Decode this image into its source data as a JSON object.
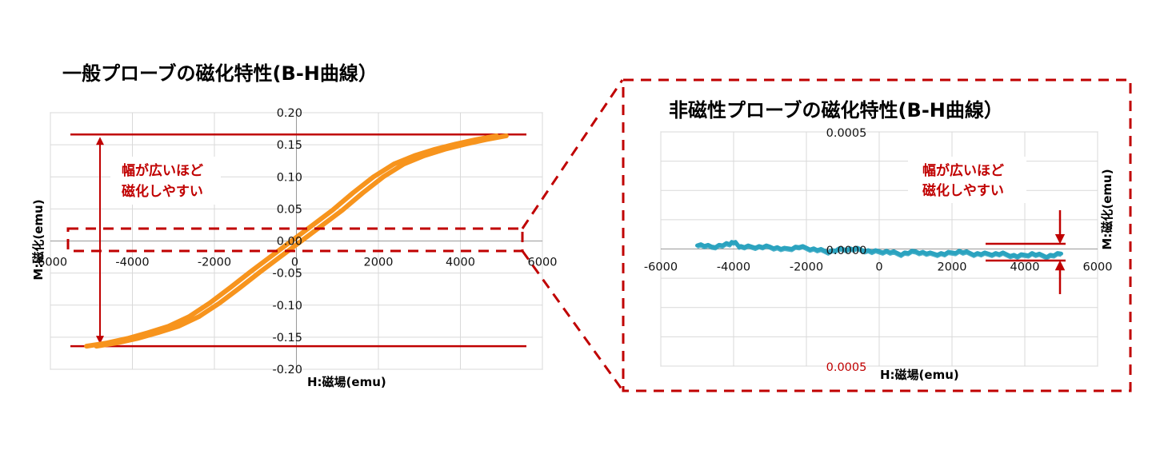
{
  "colors": {
    "accent_red": "#c00000",
    "general_series": "#f7941d",
    "nonmag_series": "#2ba3bf",
    "grid": "#d9d9d9"
  },
  "chart_data": [
    {
      "type": "line",
      "title": "一般プローブの磁化特性(B-H曲線）",
      "xlabel": "H:磁場(emu)",
      "ylabel": "M:磁化(emu)",
      "xlim": [
        -6000,
        6000
      ],
      "ylim": [
        -0.2,
        0.2
      ],
      "x_ticks": [
        -6000,
        -4000,
        -2000,
        0,
        2000,
        4000,
        6000
      ],
      "x_tick_labels": [
        "-6000",
        "-4000",
        "-2000",
        "0",
        "2000",
        "4000",
        "6000"
      ],
      "y_ticks": [
        0.2,
        0.15,
        0.1,
        0.05,
        0.0,
        -0.05,
        -0.1,
        -0.15,
        -0.2
      ],
      "y_tick_labels": [
        "0.20",
        "0.15",
        "0.10",
        "0.05",
        "0.00",
        "-0.05",
        "-0.10",
        "-0.15",
        "-0.20"
      ],
      "grid": true,
      "series": [
        {
          "x": [
            -5000,
            -4500,
            -4000,
            -3500,
            -3000,
            -2500,
            -2000,
            -1500,
            -1000,
            -500,
            0,
            500,
            1000,
            1500,
            2000,
            2500,
            3000,
            3500,
            4000,
            4500,
            5000
          ],
          "y": [
            -0.164,
            -0.159,
            -0.152,
            -0.143,
            -0.133,
            -0.118,
            -0.097,
            -0.073,
            -0.048,
            -0.024,
            0.0,
            0.024,
            0.048,
            0.075,
            0.1,
            0.12,
            0.133,
            0.143,
            0.151,
            0.158,
            0.164
          ]
        }
      ],
      "annotations": {
        "callout": [
          "幅が広いほど",
          "磁化しやすい"
        ],
        "upper_line": 0.166,
        "lower_line": -0.164
      }
    },
    {
      "type": "line",
      "title": "非磁性プローブの磁化特性(B-H曲線）",
      "xlabel": "H:磁場(emu)",
      "ylabel": "M:磁化(emu)",
      "xlim": [
        -6000,
        6000
      ],
      "ylim": [
        -0.0005,
        0.0005
      ],
      "x_ticks": [
        -6000,
        -4000,
        -2000,
        0,
        2000,
        4000,
        6000
      ],
      "x_tick_labels": [
        "-6000",
        "-4000",
        "-2000",
        "0",
        "2000",
        "4000",
        "6000"
      ],
      "y_tick_labels": {
        "top": "0.0005",
        "middle": "0.0000",
        "bottom": "0.0005"
      },
      "grid": true,
      "series": [
        {
          "x": [
            -5000,
            -4600,
            -4200,
            -4000,
            -3800,
            -3400,
            -3000,
            -2600,
            -2200,
            -1800,
            -1400,
            -1000,
            -600,
            -200,
            200,
            600,
            1000,
            1400,
            1800,
            2200,
            2600,
            3000,
            3400,
            3800,
            4200,
            4600,
            5000
          ],
          "y": [
            2e-05,
            1e-05,
            2e-05,
            3e-05,
            1e-05,
            1e-05,
            1e-05,
            0.0,
            1e-05,
            0.0,
            -1e-05,
            0.0,
            0.0,
            -1e-05,
            -1e-05,
            -2e-05,
            -1e-05,
            -2e-05,
            -2e-05,
            -1e-05,
            -2e-05,
            -2e-05,
            -2e-05,
            -3e-05,
            -2e-05,
            -3e-05,
            -2e-05
          ]
        }
      ],
      "annotations": {
        "callout": [
          "幅が広いほど",
          "磁化しやすい"
        ]
      }
    }
  ]
}
